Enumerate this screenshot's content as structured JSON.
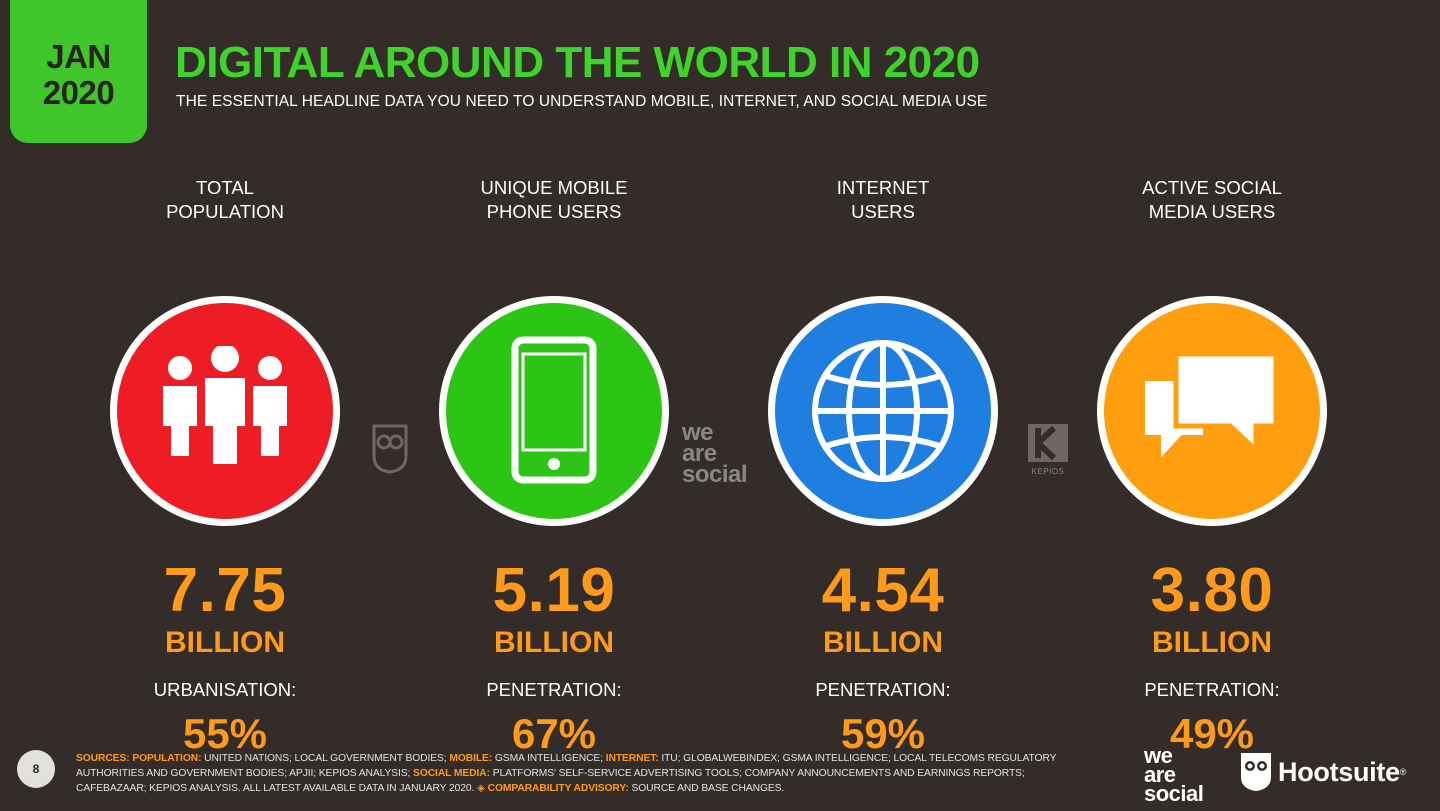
{
  "header": {
    "badge_month": "JAN",
    "badge_year": "2020",
    "title": "DIGITAL AROUND THE WORLD IN 2020",
    "subtitle": "THE ESSENTIAL HEADLINE DATA YOU NEED TO UNDERSTAND MOBILE, INTERNET, AND SOCIAL MEDIA USE"
  },
  "stats": [
    {
      "label_line1": "TOTAL",
      "label_line2": "POPULATION",
      "icon": "people-icon",
      "color": "#ee1c24",
      "value": "7.75",
      "unit": "BILLION",
      "metric_label": "URBANISATION:",
      "metric_value": "55%"
    },
    {
      "label_line1": "UNIQUE MOBILE",
      "label_line2": "PHONE USERS",
      "icon": "mobile-phone-icon",
      "color": "#2cc415",
      "value": "5.19",
      "unit": "BILLION",
      "metric_label": "PENETRATION:",
      "metric_value": "67%"
    },
    {
      "label_line1": "INTERNET",
      "label_line2": "USERS",
      "icon": "globe-icon",
      "color": "#1e7fe0",
      "value": "4.54",
      "unit": "BILLION",
      "metric_label": "PENETRATION:",
      "metric_value": "59%"
    },
    {
      "label_line1": "ACTIVE SOCIAL",
      "label_line2": "MEDIA USERS",
      "icon": "chat-bubbles-icon",
      "color": "#ff9f10",
      "value": "3.80",
      "unit": "BILLION",
      "metric_label": "PENETRATION:",
      "metric_value": "49%"
    }
  ],
  "watermarks": {
    "was_line1": "we",
    "was_line2": "are",
    "was_line3": "social",
    "kepios": "KEPIOS"
  },
  "footer": {
    "page_number": "8",
    "sources_label": "SOURCES:",
    "population_label": "POPULATION:",
    "population_text": "UNITED NATIONS; LOCAL GOVERNMENT BODIES;",
    "mobile_label": "MOBILE:",
    "mobile_text": "GSMA INTELLIGENCE;",
    "internet_label": "INTERNET:",
    "internet_text": "ITU; GLOBALWEBINDEX; GSMA INTELLIGENCE; LOCAL TELECOMS REGULATORY AUTHORITIES AND GOVERNMENT BODIES; APJII; KEPIOS ANALYSIS;",
    "social_label": "SOCIAL MEDIA:",
    "social_text": "PLATFORMS' SELF-SERVICE ADVERTISING TOOLS; COMPANY ANNOUNCEMENTS AND EARNINGS REPORTS; CAFEBAZAAR; KEPIOS ANALYSIS. ALL LATEST AVAILABLE DATA IN JANUARY 2020.",
    "advisory_label": "◈ COMPARABILITY ADVISORY:",
    "advisory_text": "SOURCE AND BASE CHANGES.",
    "brand_was_line1": "we",
    "brand_was_line2": "are",
    "brand_was_line3": "social",
    "brand_hootsuite": "Hootsuite",
    "brand_reg": "®"
  }
}
